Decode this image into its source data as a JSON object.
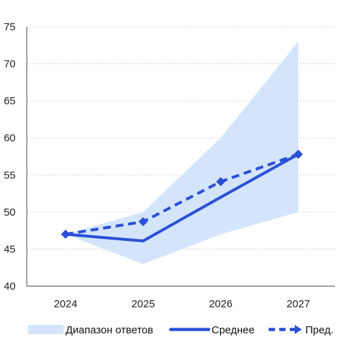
{
  "chart_data": {
    "type": "line",
    "categories": [
      "2024",
      "2025",
      "2026",
      "2027"
    ],
    "ylim": [
      40,
      75
    ],
    "yticks": [
      40,
      45,
      50,
      55,
      60,
      65,
      70,
      75
    ],
    "range": {
      "name": "Диапазон ответов",
      "low": [
        47,
        43,
        47,
        50
      ],
      "high": [
        47,
        50,
        60,
        73
      ],
      "color": "#d3e4fb"
    },
    "series": [
      {
        "name": "Среднее",
        "values": [
          47,
          46.1,
          52,
          57.8
        ],
        "color": "#2a50d6",
        "style": "solid"
      },
      {
        "name": "Пред.",
        "values": [
          47,
          48.7,
          54.1,
          57.8
        ],
        "color": "#2a50d6",
        "style": "dashed"
      }
    ],
    "grid": true,
    "legend": "bottom",
    "xlabel": "",
    "ylabel": ""
  }
}
